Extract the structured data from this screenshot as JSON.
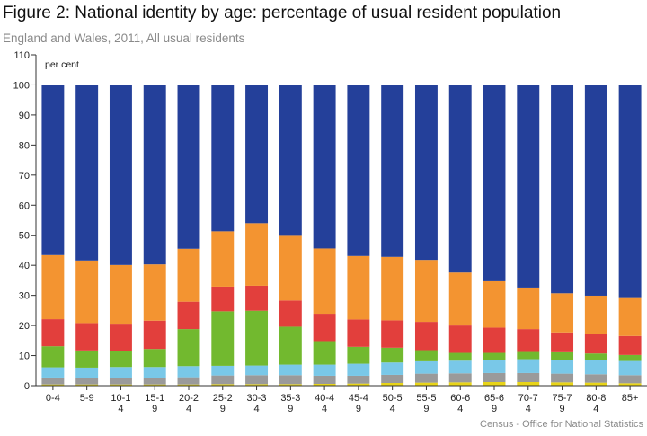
{
  "chart_data": {
    "type": "bar",
    "stacked": true,
    "title": "Figure 2: National identity by age: percentage of usual resident population",
    "subtitle": "England and Wales, 2011, All usual residents",
    "ylabel": "per cent",
    "xlabel": "",
    "ylim": [
      0,
      110
    ],
    "yticks": [
      0,
      10,
      20,
      30,
      40,
      50,
      60,
      70,
      80,
      90,
      100,
      110
    ],
    "grid": false,
    "source": "Census - Office for National Statistics",
    "categories": [
      [
        "0-4"
      ],
      [
        "5-9"
      ],
      [
        "10-1",
        "4"
      ],
      [
        "15-1",
        "9"
      ],
      [
        "20-2",
        "4"
      ],
      [
        "25-2",
        "9"
      ],
      [
        "30-3",
        "4"
      ],
      [
        "35-3",
        "9"
      ],
      [
        "40-4",
        "4"
      ],
      [
        "45-4",
        "9"
      ],
      [
        "50-5",
        "4"
      ],
      [
        "55-5",
        "9"
      ],
      [
        "60-6",
        "4"
      ],
      [
        "65-6",
        "9"
      ],
      [
        "70-7",
        "4"
      ],
      [
        "75-7",
        "9"
      ],
      [
        "80-8",
        "4"
      ],
      [
        "85+"
      ]
    ],
    "series": [
      {
        "color": "#e8d418",
        "values": [
          0.4,
          0.4,
          0.4,
          0.4,
          0.4,
          0.5,
          0.5,
          0.5,
          0.6,
          0.7,
          0.9,
          1.0,
          1.1,
          1.2,
          1.2,
          1.1,
          1.0,
          0.8
        ]
      },
      {
        "color": "#9a9a9a",
        "values": [
          2.3,
          2.0,
          2.0,
          2.2,
          2.4,
          2.9,
          3.0,
          3.0,
          2.7,
          2.6,
          2.7,
          3.0,
          3.0,
          3.0,
          3.0,
          2.9,
          2.8,
          2.7
        ]
      },
      {
        "color": "#79c8e8",
        "values": [
          3.4,
          3.6,
          3.8,
          3.6,
          3.7,
          3.2,
          3.2,
          3.5,
          3.7,
          4.0,
          4.1,
          4.1,
          4.2,
          4.4,
          4.6,
          4.6,
          4.7,
          4.7
        ]
      },
      {
        "color": "#72b92f",
        "values": [
          7.0,
          5.7,
          5.3,
          6.0,
          12.3,
          18.1,
          18.2,
          12.6,
          7.8,
          5.6,
          4.9,
          3.7,
          2.6,
          2.3,
          2.4,
          2.5,
          2.2,
          2.0
        ]
      },
      {
        "color": "#e23f3c",
        "values": [
          9.0,
          9.1,
          9.1,
          9.4,
          9.1,
          8.2,
          8.3,
          8.7,
          9.1,
          9.1,
          9.1,
          9.4,
          9.1,
          8.4,
          7.6,
          6.6,
          6.4,
          6.3
        ]
      },
      {
        "color": "#f39431",
        "values": [
          21.3,
          20.8,
          19.5,
          18.7,
          17.6,
          18.4,
          20.8,
          21.8,
          21.7,
          21.1,
          21.1,
          20.6,
          17.6,
          15.4,
          13.8,
          13.0,
          12.8,
          12.9
        ]
      },
      {
        "color": "#24409a",
        "values": [
          56.6,
          58.4,
          59.9,
          59.7,
          54.5,
          48.7,
          46.0,
          49.9,
          54.4,
          56.9,
          57.2,
          58.2,
          62.4,
          65.3,
          67.4,
          69.3,
          70.1,
          70.6
        ]
      }
    ]
  }
}
